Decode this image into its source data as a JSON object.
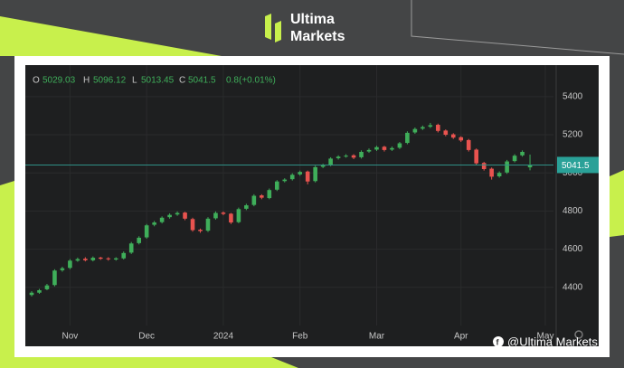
{
  "brand": [
    "Ultima",
    "Markets"
  ],
  "watermark": "@Ultima Markets",
  "chart_data": {
    "type": "candlestick",
    "header_labels": [
      "O",
      "H",
      "L",
      "C"
    ],
    "change": 0.8,
    "change_percent": {
      "value": 0.01,
      "label": "(+0.01%)"
    },
    "categories": [
      null,
      null,
      null,
      null,
      null,
      "Nov",
      null,
      null,
      null,
      null,
      null,
      null,
      null,
      null,
      null,
      "Dec",
      null,
      null,
      null,
      null,
      null,
      null,
      null,
      null,
      null,
      "2024",
      null,
      null,
      null,
      null,
      null,
      null,
      null,
      null,
      null,
      "Feb",
      null,
      null,
      null,
      null,
      null,
      null,
      null,
      null,
      null,
      "Mar",
      null,
      null,
      null,
      null,
      null,
      null,
      null,
      null,
      null,
      null,
      "Apr",
      null,
      null,
      null,
      null,
      null,
      null,
      null,
      null,
      null,
      null,
      "May"
    ],
    "open": [
      4360,
      4372,
      4390,
      4412,
      4490,
      4502,
      4540,
      4550,
      4542,
      4556,
      4552,
      4546,
      4552,
      4582,
      4632,
      4662,
      4728,
      4742,
      4768,
      4782,
      4792,
      4758,
      4702,
      4697,
      4762,
      4792,
      4786,
      4742,
      4812,
      4832,
      4882,
      4868,
      4912,
      4957,
      4967,
      4992,
      5007,
      4957,
      5032,
      5042,
      5077,
      5087,
      5092,
      5082,
      5112,
      5122,
      5137,
      5122,
      5132,
      5157,
      5212,
      5232,
      5242,
      5252,
      5222,
      5202,
      5187,
      5172,
      5122,
      5052,
      5022,
      4982,
      5002,
      5062,
      5092,
      5029.03,
      null,
      null
    ],
    "high": [
      4380,
      4392,
      4418,
      4495,
      4508,
      4548,
      4556,
      4558,
      4562,
      4560,
      4558,
      4558,
      4588,
      4638,
      4668,
      4732,
      4748,
      4772,
      4788,
      4798,
      4796,
      4765,
      4708,
      4768,
      4798,
      4798,
      4790,
      4818,
      4838,
      4888,
      4888,
      4918,
      4962,
      4972,
      4998,
      5012,
      5012,
      5038,
      5048,
      5082,
      5092,
      5098,
      5098,
      5118,
      5128,
      5142,
      5142,
      5138,
      5162,
      5218,
      5238,
      5248,
      5262,
      5258,
      5228,
      5208,
      5192,
      5178,
      5128,
      5058,
      5028,
      5008,
      5068,
      5098,
      5118,
      5096.12,
      null,
      null
    ],
    "low": [
      4352,
      4366,
      4385,
      4405,
      4482,
      4495,
      4534,
      4536,
      4536,
      4544,
      4540,
      4540,
      4546,
      4575,
      4625,
      4655,
      4720,
      4735,
      4760,
      4775,
      4752,
      4692,
      4686,
      4690,
      4755,
      4778,
      4732,
      4736,
      4805,
      4825,
      4862,
      4862,
      4905,
      4950,
      4960,
      4985,
      4940,
      4950,
      5025,
      5035,
      5070,
      5080,
      5072,
      5075,
      5105,
      5115,
      5112,
      5115,
      5125,
      5150,
      5205,
      5225,
      5235,
      5212,
      5192,
      5178,
      5162,
      5112,
      5042,
      5012,
      4965,
      4975,
      4995,
      5055,
      5085,
      5013.45,
      null,
      null
    ],
    "close": [
      4372,
      4385,
      4410,
      4488,
      4500,
      4540,
      4548,
      4542,
      4555,
      4550,
      4548,
      4552,
      4580,
      4630,
      4660,
      4725,
      4740,
      4765,
      4780,
      4790,
      4760,
      4700,
      4695,
      4760,
      4790,
      4785,
      4740,
      4810,
      4830,
      4880,
      4870,
      4910,
      4955,
      4965,
      4990,
      5005,
      4955,
      5030,
      5040,
      5075,
      5085,
      5090,
      5080,
      5110,
      5120,
      5135,
      5120,
      5130,
      5155,
      5210,
      5230,
      5240,
      5250,
      5220,
      5200,
      5185,
      5170,
      5120,
      5050,
      5020,
      4980,
      5000,
      5060,
      5090,
      5110,
      5041.5,
      null,
      null
    ],
    "up_color": "#3fae5a",
    "down_color": "#e8534f",
    "ylim": [
      4200,
      5565
    ],
    "yticks": [
      4400,
      4600,
      4800,
      5000,
      5200,
      5400
    ],
    "grid": true
  }
}
